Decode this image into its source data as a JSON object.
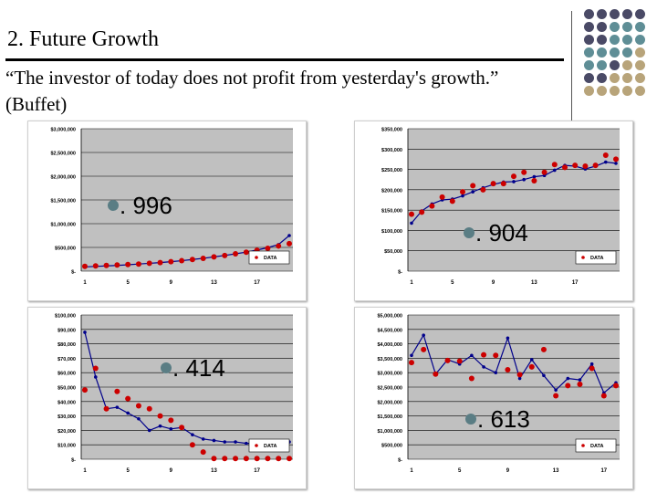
{
  "slide": {
    "title": "2. Future Growth",
    "quote": "“The investor of today does not profit from yesterday's growth.” (Buffet)"
  },
  "colors": {
    "plot_bg": "#c0c0c0",
    "actual": "#cc0000",
    "fit": "#00008b",
    "bullet": "#5a7d84"
  },
  "decor": {
    "dot_colors": [
      [
        "#4a4a66",
        "#4a4a66",
        "#4a4a66",
        "#4a4a66",
        "#4a4a66"
      ],
      [
        "#4a4a66",
        "#4a4a66",
        "#5f8e96",
        "#5f8e96",
        "#5f8e96"
      ],
      [
        "#4a4a66",
        "#4a4a66",
        "#5f8e96",
        "#5f8e96",
        "#5f8e96"
      ],
      [
        "#5f8e96",
        "#5f8e96",
        "#5f8e96",
        "#5f8e96",
        "#b8a47a"
      ],
      [
        "#5f8e96",
        "#5f8e96",
        "#4a4a66",
        "#b8a47a",
        "#b8a47a"
      ],
      [
        "#4a4a66",
        "#4a4a66",
        "#b8a47a",
        "#b8a47a",
        "#b8a47a"
      ],
      [
        "#b8a47a",
        "#b8a47a",
        "#b8a47a",
        "#b8a47a",
        "#b8a47a"
      ]
    ]
  },
  "chart_data": [
    {
      "type": "scatter",
      "title": "",
      "callout": ". 996",
      "legend": "DATA",
      "ylim": [
        0,
        3000000
      ],
      "y_ticks": [
        "$-",
        "$500,000",
        "$1,000,000",
        "$1,500,000",
        "$2,000,000",
        "$2,500,000",
        "$3,000,000"
      ],
      "x_ticks": [
        "1",
        "5",
        "9",
        "13",
        "17"
      ],
      "actual": [
        100000,
        110000,
        120000,
        130000,
        140000,
        150000,
        165000,
        180000,
        200000,
        220000,
        245000,
        270000,
        300000,
        330000,
        365000,
        400000,
        440000,
        480000,
        530000,
        580000
      ],
      "fit": [
        90000,
        100000,
        110000,
        120000,
        135000,
        150000,
        165000,
        180000,
        200000,
        220000,
        245000,
        270000,
        300000,
        330000,
        365000,
        400000,
        445000,
        495000,
        560000,
        750000
      ]
    },
    {
      "type": "scatter",
      "title": "",
      "callout": ". 904",
      "legend": "DATA",
      "ylim": [
        0,
        350000
      ],
      "y_ticks": [
        "$-",
        "$50,000",
        "$100,000",
        "$150,000",
        "$200,000",
        "$250,000",
        "$300,000",
        "$350,000"
      ],
      "x_ticks": [
        "1",
        "5",
        "9",
        "13",
        "17"
      ],
      "actual": [
        140000,
        145000,
        160000,
        182000,
        172000,
        195000,
        210000,
        200000,
        215000,
        215000,
        233000,
        243000,
        222000,
        243000,
        262000,
        255000,
        260000,
        258000,
        260000,
        285000,
        275000
      ],
      "fit": [
        118000,
        148000,
        165000,
        175000,
        177000,
        185000,
        195000,
        205000,
        213000,
        219000,
        220000,
        225000,
        232000,
        235000,
        248000,
        260000,
        258000,
        251000,
        258000,
        268000,
        265000
      ]
    },
    {
      "type": "scatter",
      "title": "",
      "callout": ". 414",
      "legend": "DATA",
      "ylim": [
        0,
        100000
      ],
      "y_ticks": [
        "$-",
        "$10,000",
        "$20,000",
        "$30,000",
        "$40,000",
        "$50,000",
        "$60,000",
        "$70,000",
        "$80,000",
        "$90,000",
        "$100,000"
      ],
      "x_ticks": [
        "1",
        "5",
        "9",
        "13",
        "17"
      ],
      "actual": [
        48000,
        63000,
        35000,
        47000,
        42000,
        37000,
        35000,
        30000,
        27000,
        22000,
        10000,
        5000,
        500,
        500,
        500,
        500,
        500,
        500,
        500,
        500
      ],
      "fit": [
        88000,
        57000,
        35000,
        36000,
        32000,
        28000,
        20000,
        23000,
        21000,
        22000,
        17000,
        14000,
        13000,
        12000,
        12000,
        11000,
        11000,
        11000,
        11000,
        12000
      ]
    },
    {
      "type": "scatter",
      "title": "",
      "callout": ". 613",
      "legend": "DATA",
      "ylim": [
        0,
        5000000
      ],
      "y_ticks": [
        "$-",
        "$500,000",
        "$1,000,000",
        "$1,500,000",
        "$2,000,000",
        "$2,500,000",
        "$3,000,000",
        "$3,500,000",
        "$4,000,000",
        "$4,500,000",
        "$5,000,000"
      ],
      "x_ticks": [
        "1",
        "5",
        "9",
        "13",
        "17"
      ],
      "actual": [
        3350000,
        3800000,
        2950000,
        3420000,
        3400000,
        2800000,
        3620000,
        3600000,
        3100000,
        2930000,
        3200000,
        3800000,
        2200000,
        2550000,
        2600000,
        3150000,
        2200000,
        2550000
      ],
      "fit": [
        3600000,
        4300000,
        2950000,
        3450000,
        3300000,
        3600000,
        3200000,
        3000000,
        4200000,
        2800000,
        3450000,
        2900000,
        2400000,
        2800000,
        2750000,
        3300000,
        2300000,
        2650000
      ]
    }
  ]
}
